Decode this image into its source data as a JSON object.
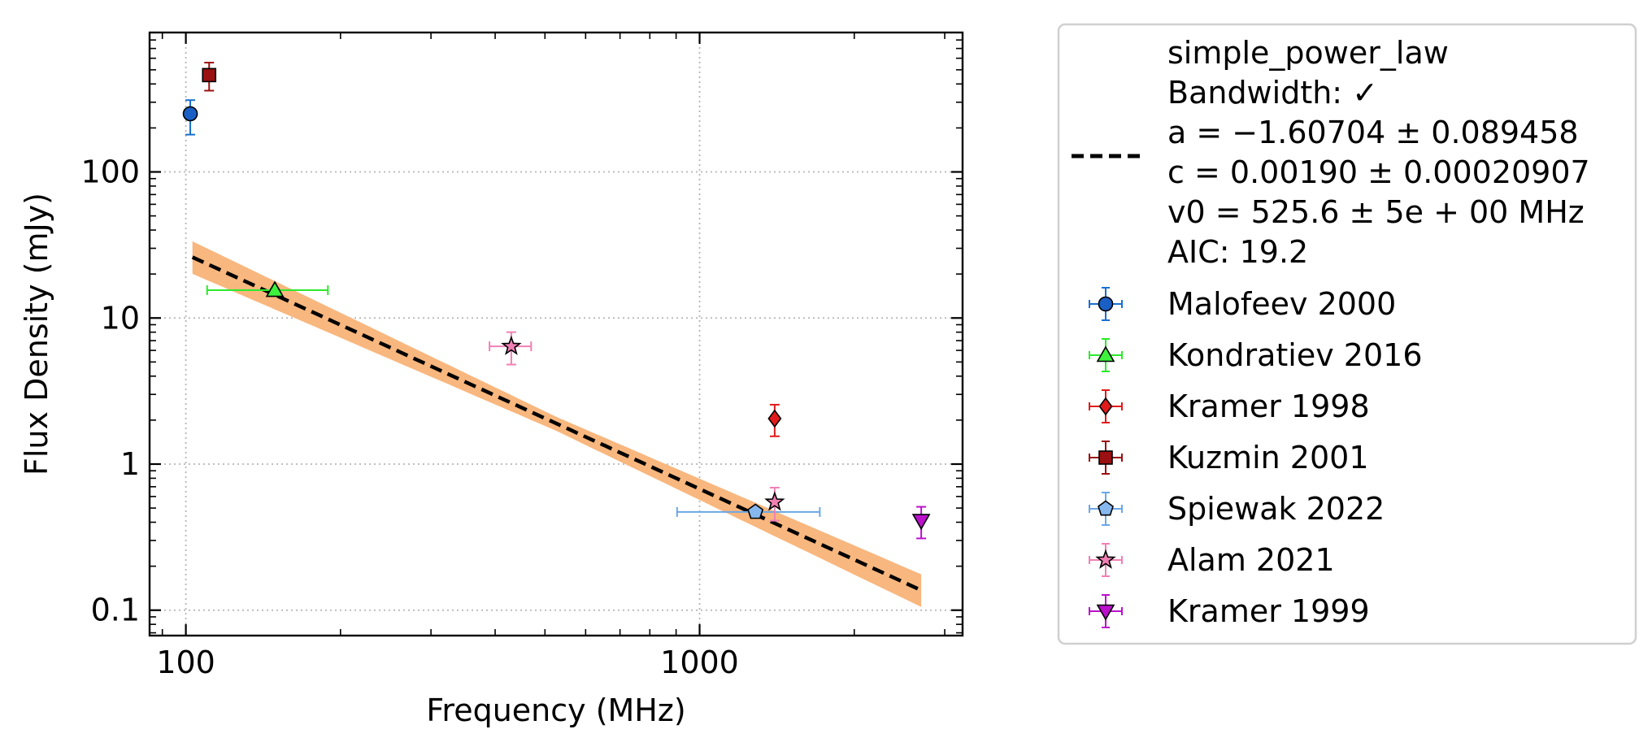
{
  "chart_data": {
    "type": "scatter",
    "xlabel": "Frequency (MHz)",
    "ylabel": "Flux Density (mJy)",
    "xscale": "log",
    "yscale": "log",
    "xlim": [
      85,
      3250
    ],
    "ylim": [
      0.067,
      900
    ],
    "grid": true,
    "legend_position": "outside right",
    "x_ticks": [
      {
        "value": 100,
        "label": "100"
      },
      {
        "value": 1000,
        "label": "1000"
      }
    ],
    "y_ticks": [
      {
        "value": 0.1,
        "label": "0.1"
      },
      {
        "value": 1,
        "label": "1"
      },
      {
        "value": 10,
        "label": "10"
      },
      {
        "value": 100,
        "label": "100"
      }
    ],
    "fit": {
      "name": "simple_power_law",
      "lines": [
        "simple_power_law",
        "Bandwidth: ✓",
        "a = −1.60704 ± 0.089458",
        "c = 0.00190 ± 0.00020907",
        "v0 = 525.6 ± 5e + 00 MHz",
        "AIC: 19.2"
      ],
      "a": -1.60704,
      "a_err": 0.089458,
      "c": 0.0019,
      "c_err": 0.00020907,
      "v0": 525.6,
      "x_range": [
        103,
        2700
      ],
      "line_color": "#000000",
      "band_color": "#f8b77e"
    },
    "series": [
      {
        "name": "Malofeev 2000",
        "marker": "circle",
        "color": "#1a5fc4",
        "err_color": "#1a6fd0",
        "points": [
          {
            "x": 102,
            "y": 250,
            "xerr": [
              0,
              0
            ],
            "yerr": [
              70,
              60
            ]
          }
        ]
      },
      {
        "name": "Kondratiev 2016",
        "marker": "triangle-up",
        "color": "#3df23d",
        "err_color": "#2bea2b",
        "points": [
          {
            "x": 149,
            "y": 15.5,
            "xerr": [
              39,
              40
            ],
            "yerr": [
              0.4,
              0.4
            ]
          }
        ]
      },
      {
        "name": "Kramer 1998",
        "marker": "diamond",
        "color": "#e11b1b",
        "err_color": "#e11b1b",
        "points": [
          {
            "x": 1400,
            "y": 2.05,
            "xerr": [
              0,
              0
            ],
            "yerr": [
              0.5,
              0.5
            ]
          }
        ]
      },
      {
        "name": "Kuzmin 2001",
        "marker": "square",
        "color": "#9b1010",
        "err_color": "#9b1010",
        "points": [
          {
            "x": 111,
            "y": 460,
            "xerr": [
              0,
              0
            ],
            "yerr": [
              100,
              100
            ]
          }
        ]
      },
      {
        "name": "Spiewak 2022",
        "marker": "pentagon",
        "color": "#86b8ee",
        "err_color": "#6aa8e6",
        "points": [
          {
            "x": 1284,
            "y": 0.47,
            "xerr": [
              380,
              430
            ],
            "yerr": [
              0,
              0
            ]
          }
        ]
      },
      {
        "name": "Alam 2021",
        "marker": "star",
        "color": "#f080b4",
        "err_color": "#f080b4",
        "points": [
          {
            "x": 430,
            "y": 6.4,
            "xerr": [
              40,
              40
            ],
            "yerr": [
              1.6,
              1.6
            ]
          },
          {
            "x": 1400,
            "y": 0.55,
            "xerr": [
              0,
              0
            ],
            "yerr": [
              0.14,
              0.14
            ]
          }
        ]
      },
      {
        "name": "Kramer 1999",
        "marker": "triangle-down",
        "color": "#bb10cc",
        "err_color": "#bb10cc",
        "points": [
          {
            "x": 2700,
            "y": 0.41,
            "xerr": [
              0,
              0
            ],
            "yerr": [
              0.1,
              0.1
            ]
          }
        ]
      }
    ]
  }
}
